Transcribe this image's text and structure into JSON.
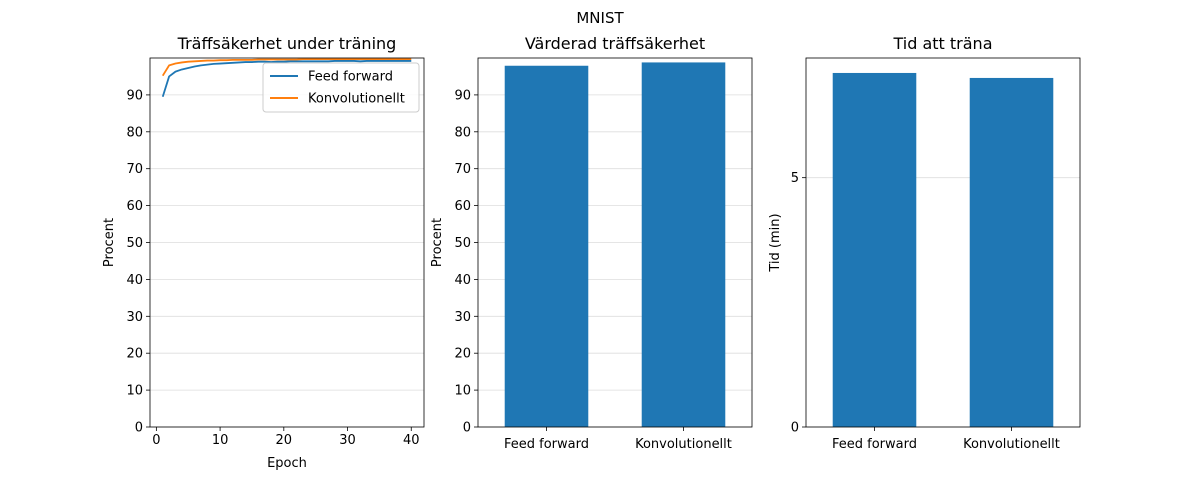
{
  "figure": {
    "suptitle": "MNIST"
  },
  "chart_data": [
    {
      "type": "line",
      "title": "Träffsäkerhet under träning",
      "xlabel": "Epoch",
      "ylabel": "Procent",
      "xlim": [
        -1,
        42
      ],
      "ylim": [
        0,
        100
      ],
      "xticks": [
        0,
        10,
        20,
        30,
        40
      ],
      "yticks": [
        0,
        10,
        20,
        30,
        40,
        50,
        60,
        70,
        80,
        90
      ],
      "grid": "horizontal",
      "legend": "top-right",
      "series": [
        {
          "name": "Feed forward",
          "color": "#1f77b4",
          "x": [
            1,
            2,
            3,
            4,
            5,
            6,
            7,
            8,
            9,
            10,
            11,
            12,
            13,
            14,
            15,
            16,
            17,
            18,
            19,
            20,
            21,
            22,
            23,
            24,
            25,
            26,
            27,
            28,
            29,
            30,
            31,
            32,
            33,
            34,
            35,
            36,
            37,
            38,
            39,
            40
          ],
          "y": [
            89.5,
            95.0,
            96.3,
            96.9,
            97.3,
            97.7,
            98.0,
            98.2,
            98.4,
            98.5,
            98.6,
            98.7,
            98.8,
            98.9,
            98.9,
            99.0,
            99.0,
            98.9,
            99.0,
            99.0,
            99.1,
            99.1,
            99.1,
            99.1,
            99.1,
            99.1,
            99.1,
            99.2,
            99.2,
            99.2,
            99.2,
            99.1,
            99.2,
            99.2,
            99.2,
            99.2,
            99.2,
            99.2,
            99.2,
            99.2
          ]
        },
        {
          "name": "Konvolutionellt",
          "color": "#ff7f0e",
          "x": [
            1,
            2,
            3,
            4,
            5,
            6,
            7,
            8,
            9,
            10,
            11,
            12,
            13,
            14,
            15,
            16,
            17,
            18,
            19,
            20,
            21,
            22,
            23,
            24,
            25,
            26,
            27,
            28,
            29,
            30,
            31,
            32,
            33,
            34,
            35,
            36,
            37,
            38,
            39,
            40
          ],
          "y": [
            95.2,
            98.0,
            98.5,
            98.8,
            99.0,
            99.1,
            99.2,
            99.3,
            99.3,
            99.4,
            99.4,
            99.5,
            99.5,
            99.5,
            99.5,
            99.6,
            99.6,
            99.6,
            99.6,
            99.6,
            99.6,
            99.6,
            99.7,
            99.7,
            99.7,
            99.7,
            99.7,
            99.7,
            99.7,
            99.7,
            99.7,
            99.7,
            99.7,
            99.7,
            99.7,
            99.7,
            99.7,
            99.7,
            99.7,
            99.7
          ]
        }
      ]
    },
    {
      "type": "bar",
      "title": "Värderad träffsäkerhet",
      "xlabel": "",
      "ylabel": "Procent",
      "ylim": [
        0,
        100
      ],
      "yticks": [
        0,
        10,
        20,
        30,
        40,
        50,
        60,
        70,
        80,
        90
      ],
      "grid": "horizontal",
      "color": "#1f77b4",
      "categories": [
        "Feed forward",
        "Konvolutionellt"
      ],
      "values": [
        97.9,
        98.8
      ]
    },
    {
      "type": "bar",
      "title": "Tid att träna",
      "xlabel": "",
      "ylabel": "Tid (min)",
      "ylim": [
        0,
        7.4
      ],
      "yticks": [
        0,
        5
      ],
      "grid": "horizontal",
      "color": "#1f77b4",
      "categories": [
        "Feed forward",
        "Konvolutionellt"
      ],
      "values": [
        7.1,
        7.0
      ]
    }
  ]
}
